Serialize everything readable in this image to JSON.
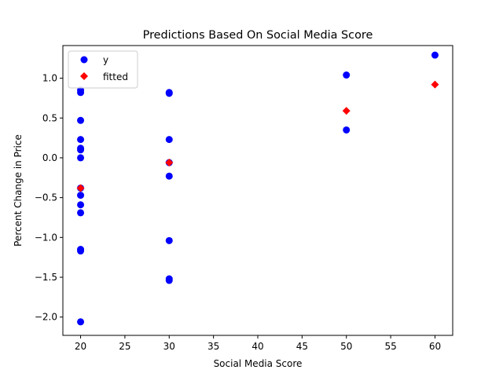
{
  "chart_data": {
    "type": "scatter",
    "title": "Predictions Based On Social Media Score",
    "xlabel": "Social Media Score",
    "ylabel": "Percent Change in Price",
    "xlim": [
      18,
      62
    ],
    "ylim": [
      -2.23,
      1.41
    ],
    "xticks": [
      20,
      25,
      30,
      35,
      40,
      45,
      50,
      55,
      60
    ],
    "yticks": [
      -2.0,
      -1.5,
      -1.0,
      -0.5,
      0.0,
      0.5,
      1.0
    ],
    "ytick_labels": [
      "−2.0",
      "−1.5",
      "−1.0",
      "−0.5",
      "0.0",
      "0.5",
      "1.0"
    ],
    "grid": false,
    "legend": "top-left",
    "series": [
      {
        "name": "y",
        "marker": "circle",
        "color": "#0000ff",
        "points": [
          [
            20,
            0.85
          ],
          [
            20,
            0.82
          ],
          [
            20,
            0.47
          ],
          [
            20,
            0.23
          ],
          [
            20,
            0.12
          ],
          [
            20,
            0.1
          ],
          [
            20,
            0.0
          ],
          [
            20,
            -0.38
          ],
          [
            20,
            -0.47
          ],
          [
            20,
            -0.59
          ],
          [
            20,
            -0.69
          ],
          [
            20,
            -1.15
          ],
          [
            20,
            -1.17
          ],
          [
            20,
            -2.06
          ],
          [
            30,
            0.82
          ],
          [
            30,
            0.81
          ],
          [
            30,
            0.23
          ],
          [
            30,
            -0.06
          ],
          [
            30,
            -0.23
          ],
          [
            30,
            -1.04
          ],
          [
            30,
            -1.52
          ],
          [
            30,
            -1.54
          ],
          [
            50,
            1.04
          ],
          [
            50,
            0.35
          ],
          [
            60,
            1.29
          ]
        ]
      },
      {
        "name": "fitted",
        "marker": "diamond",
        "color": "#ff0000",
        "points": [
          [
            20,
            -0.38
          ],
          [
            30,
            -0.06
          ],
          [
            50,
            0.59
          ],
          [
            60,
            0.92
          ]
        ]
      }
    ]
  }
}
